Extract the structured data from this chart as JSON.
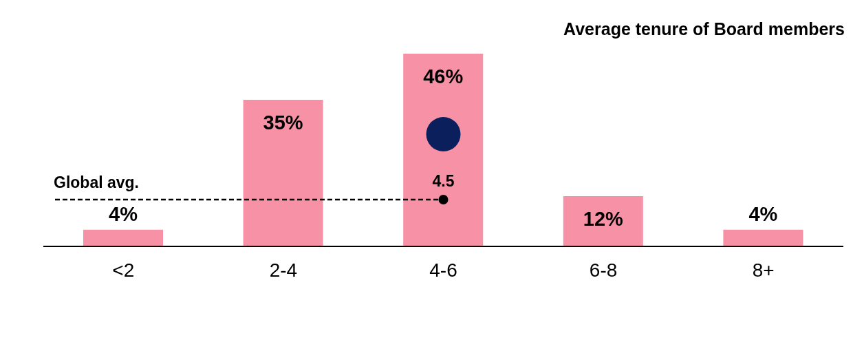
{
  "chart_data": {
    "type": "bar",
    "title": "Average tenure of Board members",
    "categories": [
      "<2",
      "2-4",
      "4-6",
      "6-8",
      "8+"
    ],
    "values": [
      4,
      35,
      46,
      12,
      4
    ],
    "value_labels": [
      "4%",
      "35%",
      "46%",
      "12%",
      "4%"
    ],
    "color": "#f792a6",
    "annotations": [
      "Global avg.",
      "4.5"
    ]
  }
}
